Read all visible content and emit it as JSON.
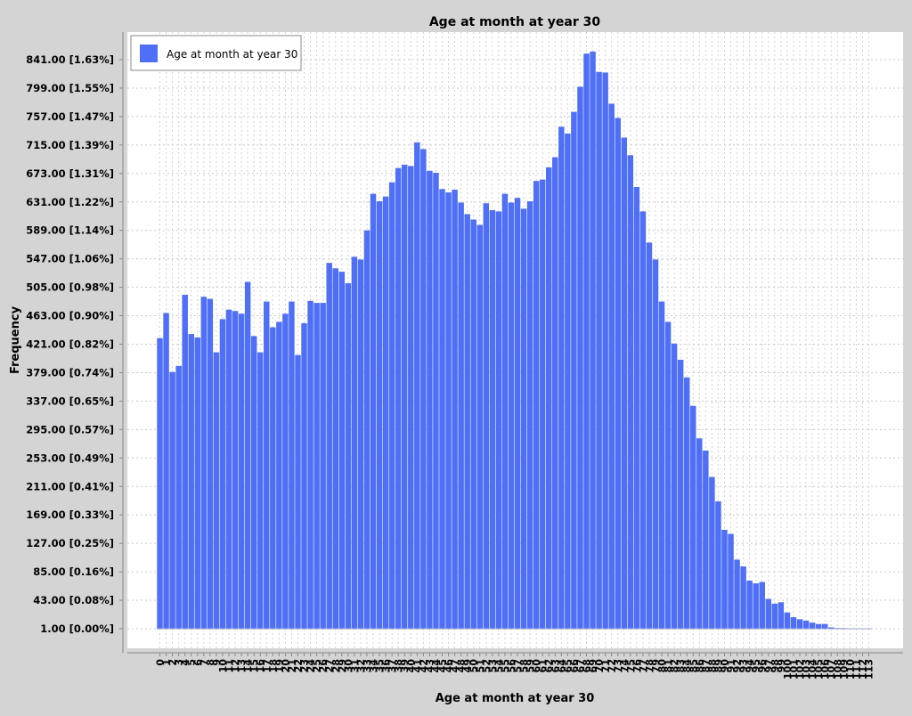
{
  "chart_data": {
    "type": "bar",
    "title": "Age at month at year 30",
    "xlabel": "Age at month at year 30",
    "ylabel": "Frequency",
    "legend": {
      "position": "top-left",
      "entries": [
        "Age at month at year 30"
      ]
    },
    "grid": true,
    "ylim": [
      1,
      867
    ],
    "y_ticks": [
      {
        "value": 1,
        "label": "1.00 [0.00%]"
      },
      {
        "value": 43,
        "label": "43.00 [0.08%]"
      },
      {
        "value": 85,
        "label": "85.00 [0.16%]"
      },
      {
        "value": 127,
        "label": "127.00 [0.25%]"
      },
      {
        "value": 169,
        "label": "169.00 [0.33%]"
      },
      {
        "value": 211,
        "label": "211.00 [0.41%]"
      },
      {
        "value": 253,
        "label": "253.00 [0.49%]"
      },
      {
        "value": 295,
        "label": "295.00 [0.57%]"
      },
      {
        "value": 337,
        "label": "337.00 [0.65%]"
      },
      {
        "value": 379,
        "label": "379.00 [0.74%]"
      },
      {
        "value": 421,
        "label": "421.00 [0.82%]"
      },
      {
        "value": 463,
        "label": "463.00 [0.90%]"
      },
      {
        "value": 505,
        "label": "505.00 [0.98%]"
      },
      {
        "value": 547,
        "label": "547.00 [1.06%]"
      },
      {
        "value": 589,
        "label": "589.00 [1.14%]"
      },
      {
        "value": 631,
        "label": "631.00 [1.22%]"
      },
      {
        "value": 673,
        "label": "673.00 [1.31%]"
      },
      {
        "value": 715,
        "label": "715.00 [1.39%]"
      },
      {
        "value": 757,
        "label": "757.00 [1.47%]"
      },
      {
        "value": 799,
        "label": "799.00 [1.55%]"
      },
      {
        "value": 841,
        "label": "841.00 [1.63%]"
      }
    ],
    "series": [
      {
        "name": "Age at month at year 30",
        "color": "#4f6ff7",
        "categories": [
          "0",
          "1",
          "2",
          "3",
          "4",
          "5",
          "6",
          "7",
          "8",
          "9",
          "10",
          "11",
          "12",
          "13",
          "14",
          "15",
          "16",
          "17",
          "18",
          "19",
          "20",
          "21",
          "22",
          "23",
          "24",
          "25",
          "26",
          "27",
          "28",
          "29",
          "30",
          "31",
          "32",
          "33",
          "34",
          "35",
          "36",
          "37",
          "38",
          "39",
          "40",
          "41",
          "42",
          "43",
          "44",
          "45",
          "46",
          "47",
          "48",
          "49",
          "50",
          "51",
          "52",
          "53",
          "54",
          "55",
          "56",
          "57",
          "58",
          "59",
          "60",
          "61",
          "62",
          "63",
          "64",
          "65",
          "66",
          "67",
          "68",
          "69",
          "70",
          "71",
          "72",
          "73",
          "74",
          "75",
          "76",
          "77",
          "78",
          "79",
          "80",
          "81",
          "82",
          "83",
          "84",
          "85",
          "86",
          "87",
          "88",
          "89",
          "90",
          "91",
          "92",
          "93",
          "94",
          "95",
          "96",
          "97",
          "98",
          "99",
          "100",
          "101",
          "102",
          "103",
          "104",
          "105",
          "106",
          "107",
          "108",
          "109",
          "110",
          "111",
          "112",
          "113"
        ],
        "values": [
          430,
          467,
          380,
          389,
          494,
          436,
          431,
          491,
          488,
          409,
          458,
          472,
          470,
          466,
          513,
          433,
          409,
          484,
          446,
          454,
          466,
          484,
          405,
          452,
          485,
          482,
          482,
          541,
          533,
          528,
          511,
          550,
          546,
          589,
          643,
          632,
          639,
          660,
          681,
          686,
          684,
          719,
          709,
          677,
          674,
          650,
          645,
          649,
          630,
          613,
          605,
          597,
          629,
          619,
          617,
          643,
          630,
          637,
          621,
          632,
          662,
          664,
          682,
          697,
          742,
          732,
          764,
          801,
          850,
          853,
          823,
          822,
          776,
          755,
          726,
          700,
          653,
          617,
          571,
          546,
          484,
          454,
          422,
          398,
          372,
          330,
          282,
          264,
          225,
          189,
          147,
          141,
          103,
          93,
          72,
          68,
          70,
          45,
          38,
          40,
          25,
          18,
          15,
          13,
          10,
          8,
          8,
          3,
          2,
          2,
          1,
          1,
          1,
          1
        ]
      }
    ],
    "x_tick_labels": [
      "0",
      "1",
      "2",
      "3",
      "4",
      "5",
      "6",
      "7",
      "8",
      "9",
      "10",
      "11",
      "12",
      "13",
      "14",
      "15",
      "16",
      "17",
      "18",
      "19",
      "20",
      "21",
      "22",
      "23",
      "24",
      "25",
      "26",
      "27",
      "28",
      "29",
      "30",
      "31",
      "32",
      "33",
      "34",
      "35",
      "36",
      "37",
      "38",
      "39",
      "40",
      "41",
      "42",
      "43",
      "44",
      "45",
      "46",
      "47",
      "48",
      "49",
      "50",
      "51",
      "52",
      "53",
      "54",
      "55",
      "56",
      "57",
      "58",
      "59",
      "60",
      "61",
      "62",
      "63",
      "64",
      "65",
      "66",
      "67",
      "68",
      "69",
      "70",
      "71",
      "72",
      "73",
      "74",
      "75",
      "76",
      "77",
      "78",
      "79",
      "80",
      "81",
      "82",
      "83",
      "84",
      "85",
      "86",
      "87",
      "88",
      "89",
      "90",
      "91",
      "92",
      "93",
      "94",
      "95",
      "96",
      "97",
      "98",
      "99",
      "100",
      "101",
      "102",
      "103",
      "104",
      "105",
      "106",
      "107",
      "108",
      "109",
      "110",
      "111",
      "112",
      "113"
    ]
  }
}
